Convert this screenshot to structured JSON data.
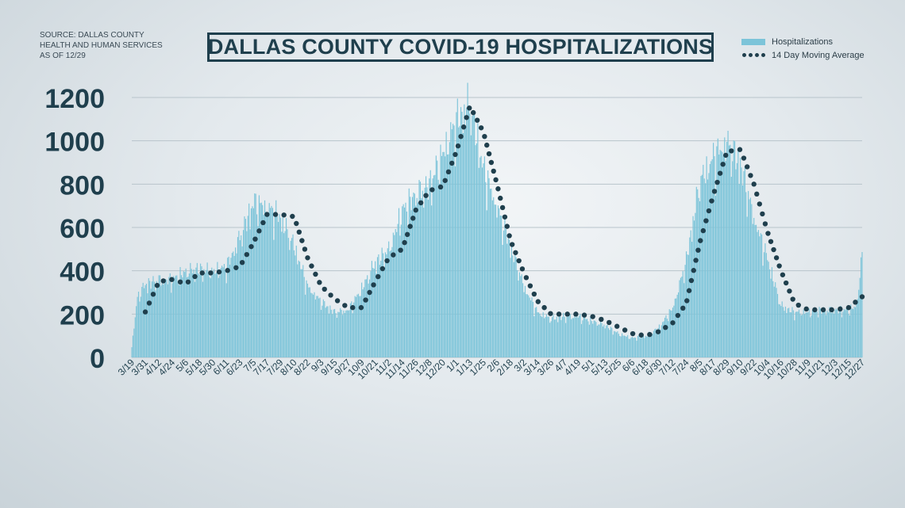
{
  "source": {
    "lines": [
      "SOURCE: DALLAS COUNTY",
      "HEALTH AND HUMAN SERVICES",
      "AS OF 12/29"
    ]
  },
  "colors": {
    "bars": "#7cc4d9",
    "moving_average": "#1f3f4d",
    "title_border": "#1f3f4d",
    "axis_text": "#1f3f4d"
  },
  "chart_data": {
    "type": "bar",
    "title": "DALLAS COUNTY COVID-19 HOSPITALIZATIONS",
    "xlabel": "",
    "ylabel": "",
    "ylim": [
      0,
      1200
    ],
    "yticks": [
      0,
      200,
      400,
      600,
      800,
      1000,
      1200
    ],
    "grid": "horizontal",
    "legend_position": "top-right",
    "legend": [
      "Hospitalizations",
      "14 Day Moving Average"
    ],
    "x_tick_labels": [
      "3/19",
      "3/31",
      "4/12",
      "4/24",
      "5/6",
      "5/18",
      "5/30",
      "6/11",
      "6/23",
      "7/5",
      "7/17",
      "7/29",
      "8/10",
      "8/22",
      "9/3",
      "9/15",
      "9/27",
      "10/9",
      "10/21",
      "11/2",
      "11/14",
      "11/26",
      "12/8",
      "12/20",
      "1/1",
      "1/13",
      "1/25",
      "2/6",
      "2/18",
      "3/2",
      "3/14",
      "3/26",
      "4/7",
      "4/19",
      "5/1",
      "5/13",
      "5/25",
      "6/6",
      "6/18",
      "6/30",
      "7/12",
      "7/24",
      "8/5",
      "8/17",
      "8/29",
      "9/10",
      "9/22",
      "10/4",
      "10/16",
      "10/28",
      "11/9",
      "11/21",
      "12/3",
      "12/15",
      "12/27"
    ],
    "series": [
      {
        "name": "Hospitalizations",
        "style": "bars",
        "anchor_dates": [
          "3/19",
          "3/24",
          "3/31",
          "4/12",
          "4/24",
          "5/6",
          "5/18",
          "5/30",
          "6/11",
          "6/23",
          "7/5",
          "7/17",
          "7/29",
          "8/10",
          "8/22",
          "9/3",
          "9/15",
          "9/27",
          "10/9",
          "10/21",
          "11/2",
          "11/14",
          "11/26",
          "12/8",
          "12/20",
          "1/1",
          "1/13",
          "1/25",
          "2/6",
          "2/18",
          "3/2",
          "3/14",
          "3/26",
          "4/7",
          "4/19",
          "5/1",
          "5/13",
          "5/25",
          "6/6",
          "6/18",
          "6/30",
          "7/12",
          "7/24",
          "8/5",
          "8/17",
          "8/29",
          "9/10",
          "9/22",
          "10/4",
          "10/16",
          "10/28",
          "11/9",
          "11/21",
          "12/3",
          "12/15",
          "12/22",
          "12/27"
        ],
        "values": [
          50,
          280,
          340,
          360,
          360,
          400,
          410,
          400,
          420,
          560,
          720,
          700,
          650,
          520,
          330,
          260,
          210,
          220,
          320,
          440,
          500,
          680,
          760,
          800,
          950,
          1100,
          1180,
          880,
          700,
          520,
          330,
          210,
          180,
          190,
          190,
          170,
          150,
          110,
          90,
          100,
          140,
          230,
          450,
          820,
          930,
          1000,
          900,
          650,
          460,
          240,
          210,
          210,
          220,
          220,
          220,
          240,
          480
        ]
      },
      {
        "name": "14 Day Moving Average",
        "style": "dotted-line",
        "anchor_dates": [
          "3/31",
          "4/12",
          "4/24",
          "5/6",
          "5/18",
          "5/30",
          "6/11",
          "6/23",
          "7/5",
          "7/17",
          "7/29",
          "8/10",
          "8/22",
          "9/3",
          "9/15",
          "9/27",
          "10/9",
          "10/21",
          "11/2",
          "11/14",
          "11/26",
          "12/8",
          "12/20",
          "1/1",
          "1/13",
          "1/25",
          "2/6",
          "2/18",
          "3/2",
          "3/14",
          "3/26",
          "4/7",
          "4/19",
          "5/1",
          "5/13",
          "5/25",
          "6/6",
          "6/18",
          "6/30",
          "7/12",
          "7/24",
          "8/5",
          "8/17",
          "8/29",
          "9/10",
          "9/22",
          "10/4",
          "10/16",
          "10/28",
          "11/9",
          "11/21",
          "12/3",
          "12/15",
          "12/27"
        ],
        "values": [
          210,
          350,
          360,
          340,
          390,
          390,
          400,
          420,
          530,
          660,
          660,
          650,
          460,
          330,
          270,
          230,
          230,
          350,
          460,
          500,
          680,
          770,
          790,
          950,
          1160,
          1040,
          800,
          540,
          390,
          260,
          200,
          200,
          200,
          190,
          170,
          140,
          110,
          100,
          120,
          160,
          250,
          530,
          750,
          950,
          960,
          800,
          580,
          400,
          250,
          220,
          220,
          220,
          230,
          280
        ]
      }
    ]
  }
}
